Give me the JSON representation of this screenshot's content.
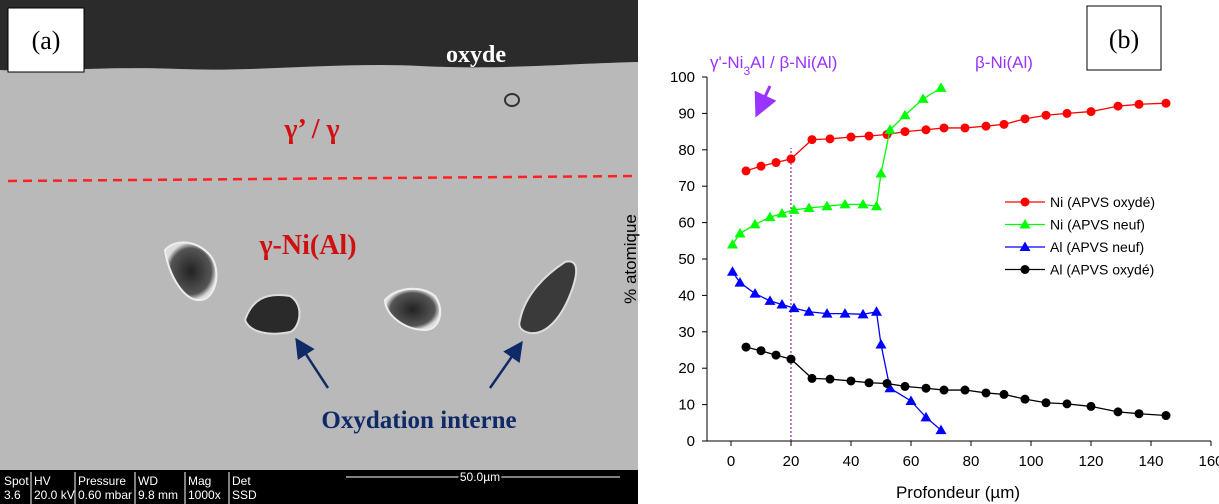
{
  "panel_a": {
    "label": "(a)",
    "oxide": "oxyde",
    "phase_top": "γ’ / γ",
    "phase_mid": "γ-Ni(Al)",
    "annotation": "Oxydation interne",
    "info_headers": [
      "Spot",
      "HV",
      "Pressure",
      "WD",
      "Mag",
      "Det"
    ],
    "info_values": [
      "3.6",
      "20.0 kV",
      "0.60  mbar",
      "9.8 mm",
      "1000x",
      "SSD"
    ],
    "scale_bar": "50.0µm"
  },
  "chart_data": {
    "type": "line",
    "panel_label": "(b)",
    "xlabel": "Profondeur (µm)",
    "ylabel": "% atomique",
    "xlim": [
      -8,
      160
    ],
    "xticks": [
      0,
      20,
      40,
      60,
      80,
      100,
      120,
      140,
      160
    ],
    "ylim": [
      0,
      100
    ],
    "yticks": [
      0,
      10,
      20,
      30,
      40,
      50,
      60,
      70,
      80,
      90,
      100
    ],
    "legend": "right",
    "reference_line": {
      "x": 20,
      "color": "#800080"
    },
    "annotations": [
      {
        "parts": [
          "γ'-Ni",
          "3",
          "Al / β-Ni(Al)"
        ],
        "color": "#9933ff"
      },
      {
        "text": "β-Ni(Al)",
        "color": "#9933ff"
      }
    ],
    "series": [
      {
        "name": "Ni (APVS oxydé)",
        "color": "#ff0000",
        "marker": "circle",
        "x": [
          5,
          10,
          15,
          20,
          27,
          33,
          40,
          46,
          52,
          58,
          65,
          71,
          78,
          85,
          91,
          98,
          105,
          112,
          120,
          129,
          136,
          145
        ],
        "values": [
          74.2,
          75.5,
          76.5,
          77.5,
          82.8,
          83,
          83.5,
          83.8,
          84.2,
          85,
          85.5,
          86,
          86,
          86.5,
          87,
          88.5,
          89.5,
          90,
          90.5,
          92,
          92.5,
          92.8
        ]
      },
      {
        "name": "Ni (APVS neuf)",
        "color": "#00ff00",
        "marker": "triangle",
        "x": [
          0.5,
          3,
          8,
          13,
          17,
          21,
          26,
          32,
          38,
          44,
          48.5,
          50,
          53,
          58,
          64,
          70
        ],
        "values": [
          54,
          57,
          59.5,
          61.5,
          62.5,
          63.5,
          64,
          64.5,
          65,
          65,
          64.5,
          73.5,
          85.5,
          89.5,
          94,
          97
        ]
      },
      {
        "name": "Al (APVS neuf)",
        "color": "#0000ff",
        "marker": "triangle",
        "x": [
          0.5,
          3,
          8,
          13,
          17,
          21,
          26,
          32,
          38,
          44,
          48.5,
          50,
          53,
          60,
          65,
          70
        ],
        "values": [
          46.5,
          43.5,
          40.5,
          38.5,
          37.5,
          36.5,
          35.5,
          35,
          35,
          34.8,
          35.5,
          26.5,
          14.5,
          11,
          6.5,
          3
        ]
      },
      {
        "name": "Al (APVS oxydé)",
        "color": "#000000",
        "marker": "circle",
        "x": [
          5,
          10,
          15,
          20,
          27,
          33,
          40,
          46,
          52,
          58,
          65,
          71,
          78,
          85,
          91,
          98,
          105,
          112,
          120,
          129,
          136,
          145
        ],
        "values": [
          25.8,
          24.8,
          23.6,
          22.5,
          17.2,
          17,
          16.5,
          16,
          15.8,
          15,
          14.5,
          14,
          14,
          13.2,
          12.8,
          11.5,
          10.5,
          10.2,
          9.5,
          8,
          7.5,
          7
        ]
      }
    ]
  }
}
